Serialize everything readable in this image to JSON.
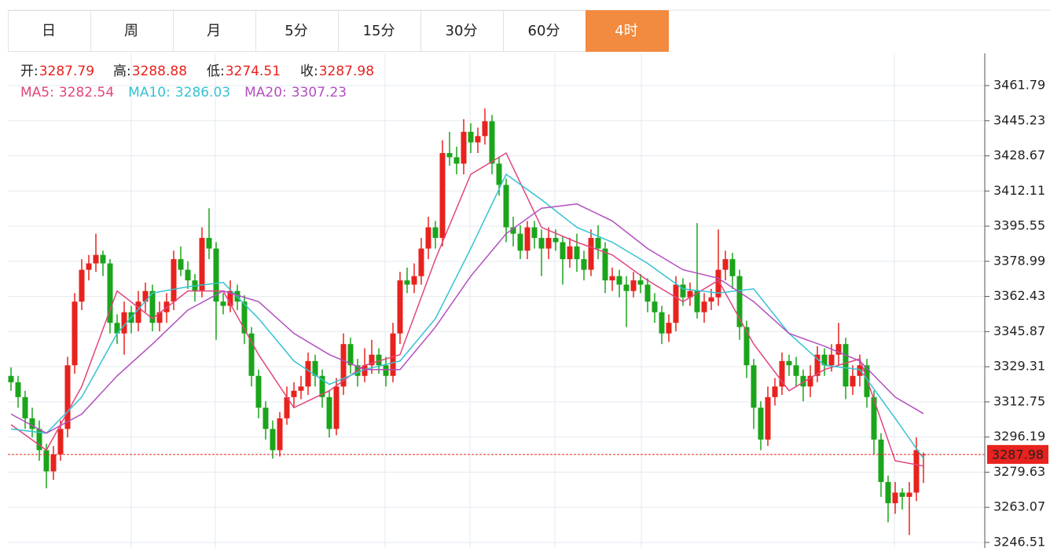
{
  "tabs": [
    "日",
    "周",
    "月",
    "5分",
    "15分",
    "30分",
    "60分",
    "4时"
  ],
  "active_tab": "4时",
  "chart_data": {
    "type": "candlestick",
    "ohlc_labels": [
      "开:",
      "高:",
      "低:",
      "收:"
    ],
    "up_color": "#e8221e",
    "down_color": "#1aa51a",
    "ylim": [
      3243.9,
      3476.96
    ],
    "yticks": [
      3246.51,
      3263.07,
      3279.63,
      3296.19,
      3312.75,
      3329.31,
      3345.87,
      3362.43,
      3378.99,
      3395.55,
      3412.11,
      3428.67,
      3445.23,
      3461.79
    ],
    "grid": true,
    "candles": [
      [
        3325,
        3329,
        3318,
        3322
      ],
      [
        3322,
        3325,
        3310,
        3315
      ],
      [
        3315,
        3318,
        3300,
        3305
      ],
      [
        3305,
        3310,
        3296,
        3300
      ],
      [
        3300,
        3304,
        3285,
        3290
      ],
      [
        3290,
        3293,
        3272,
        3280
      ],
      [
        3280,
        3292,
        3276,
        3288
      ],
      [
        3288,
        3304,
        3285,
        3300
      ],
      [
        3300,
        3334,
        3296,
        3330
      ],
      [
        3330,
        3364,
        3326,
        3360
      ],
      [
        3360,
        3380,
        3356,
        3375
      ],
      [
        3375,
        3382,
        3370,
        3378
      ],
      [
        3378,
        3392,
        3374,
        3382
      ],
      [
        3382,
        3384,
        3372,
        3378
      ],
      [
        3378,
        3380,
        3345,
        3350
      ],
      [
        3350,
        3354,
        3340,
        3345
      ],
      [
        3345,
        3360,
        3335,
        3355
      ],
      [
        3355,
        3358,
        3345,
        3350
      ],
      [
        3350,
        3365,
        3346,
        3360
      ],
      [
        3360,
        3369,
        3355,
        3365
      ],
      [
        3365,
        3368,
        3346,
        3350
      ],
      [
        3350,
        3360,
        3346,
        3355
      ],
      [
        3355,
        3364,
        3350,
        3360
      ],
      [
        3360,
        3384,
        3356,
        3380
      ],
      [
        3380,
        3386,
        3372,
        3375
      ],
      [
        3375,
        3379,
        3366,
        3370
      ],
      [
        3370,
        3373,
        3360,
        3365
      ],
      [
        3365,
        3395,
        3362,
        3390
      ],
      [
        3390,
        3404,
        3380,
        3385
      ],
      [
        3385,
        3388,
        3342,
        3360
      ],
      [
        3360,
        3364,
        3354,
        3358
      ],
      [
        3358,
        3370,
        3355,
        3365
      ],
      [
        3365,
        3368,
        3356,
        3360
      ],
      [
        3360,
        3363,
        3340,
        3345
      ],
      [
        3345,
        3348,
        3320,
        3325
      ],
      [
        3325,
        3328,
        3305,
        3310
      ],
      [
        3310,
        3313,
        3295,
        3300
      ],
      [
        3300,
        3304,
        3286,
        3290
      ],
      [
        3290,
        3308,
        3287,
        3305
      ],
      [
        3305,
        3320,
        3302,
        3315
      ],
      [
        3315,
        3322,
        3310,
        3318
      ],
      [
        3318,
        3325,
        3314,
        3320
      ],
      [
        3320,
        3336,
        3316,
        3332
      ],
      [
        3332,
        3335,
        3320,
        3325
      ],
      [
        3325,
        3328,
        3310,
        3315
      ],
      [
        3315,
        3318,
        3296,
        3300
      ],
      [
        3300,
        3324,
        3297,
        3320
      ],
      [
        3320,
        3345,
        3316,
        3340
      ],
      [
        3340,
        3343,
        3326,
        3330
      ],
      [
        3330,
        3333,
        3320,
        3325
      ],
      [
        3325,
        3338,
        3322,
        3330
      ],
      [
        3330,
        3342,
        3326,
        3335
      ],
      [
        3335,
        3338,
        3326,
        3330
      ],
      [
        3330,
        3334,
        3320,
        3325
      ],
      [
        3325,
        3350,
        3322,
        3345
      ],
      [
        3345,
        3374,
        3340,
        3370
      ],
      [
        3370,
        3376,
        3364,
        3368
      ],
      [
        3368,
        3378,
        3364,
        3372
      ],
      [
        3372,
        3390,
        3368,
        3385
      ],
      [
        3385,
        3400,
        3380,
        3395
      ],
      [
        3395,
        3398,
        3385,
        3390
      ],
      [
        3390,
        3436,
        3386,
        3430
      ],
      [
        3430,
        3440,
        3424,
        3428
      ],
      [
        3428,
        3433,
        3420,
        3425
      ],
      [
        3425,
        3446,
        3420,
        3440
      ],
      [
        3440,
        3444,
        3430,
        3435
      ],
      [
        3435,
        3442,
        3430,
        3438
      ],
      [
        3438,
        3451,
        3434,
        3445
      ],
      [
        3445,
        3448,
        3420,
        3425
      ],
      [
        3425,
        3428,
        3410,
        3415
      ],
      [
        3415,
        3418,
        3388,
        3395
      ],
      [
        3395,
        3400,
        3386,
        3392
      ],
      [
        3392,
        3396,
        3380,
        3384
      ],
      [
        3384,
        3398,
        3380,
        3395
      ],
      [
        3395,
        3398,
        3385,
        3390
      ],
      [
        3390,
        3394,
        3372,
        3385
      ],
      [
        3385,
        3395,
        3380,
        3390
      ],
      [
        3390,
        3394,
        3384,
        3388
      ],
      [
        3388,
        3391,
        3368,
        3380
      ],
      [
        3380,
        3390,
        3376,
        3386
      ],
      [
        3386,
        3392,
        3374,
        3380
      ],
      [
        3380,
        3384,
        3370,
        3375
      ],
      [
        3375,
        3394,
        3372,
        3390
      ],
      [
        3390,
        3396,
        3380,
        3385
      ],
      [
        3385,
        3388,
        3364,
        3370
      ],
      [
        3370,
        3376,
        3365,
        3372
      ],
      [
        3372,
        3375,
        3362,
        3368
      ],
      [
        3368,
        3372,
        3348,
        3365
      ],
      [
        3365,
        3374,
        3362,
        3370
      ],
      [
        3370,
        3373,
        3364,
        3368
      ],
      [
        3368,
        3371,
        3355,
        3360
      ],
      [
        3360,
        3364,
        3350,
        3355
      ],
      [
        3355,
        3358,
        3340,
        3345
      ],
      [
        3345,
        3354,
        3341,
        3350
      ],
      [
        3350,
        3372,
        3346,
        3368
      ],
      [
        3368,
        3371,
        3358,
        3362
      ],
      [
        3362,
        3369,
        3358,
        3365
      ],
      [
        3365,
        3397,
        3352,
        3355
      ],
      [
        3355,
        3364,
        3350,
        3360
      ],
      [
        3360,
        3366,
        3356,
        3362
      ],
      [
        3362,
        3394,
        3358,
        3375
      ],
      [
        3375,
        3384,
        3370,
        3380
      ],
      [
        3380,
        3383,
        3366,
        3372
      ],
      [
        3372,
        3375,
        3342,
        3348
      ],
      [
        3348,
        3351,
        3324,
        3330
      ],
      [
        3330,
        3333,
        3300,
        3310
      ],
      [
        3310,
        3313,
        3290,
        3295
      ],
      [
        3295,
        3320,
        3292,
        3315
      ],
      [
        3315,
        3324,
        3311,
        3320
      ],
      [
        3320,
        3336,
        3316,
        3332
      ],
      [
        3332,
        3335,
        3325,
        3330
      ],
      [
        3330,
        3334,
        3320,
        3325
      ],
      [
        3325,
        3328,
        3313,
        3320
      ],
      [
        3320,
        3330,
        3315,
        3325
      ],
      [
        3325,
        3339,
        3322,
        3335
      ],
      [
        3335,
        3338,
        3325,
        3330
      ],
      [
        3330,
        3340,
        3327,
        3335
      ],
      [
        3335,
        3350,
        3330,
        3340
      ],
      [
        3340,
        3343,
        3314,
        3320
      ],
      [
        3320,
        3330,
        3316,
        3325
      ],
      [
        3325,
        3335,
        3320,
        3330
      ],
      [
        3330,
        3333,
        3310,
        3315
      ],
      [
        3315,
        3318,
        3288,
        3295
      ],
      [
        3295,
        3298,
        3268,
        3275
      ],
      [
        3275,
        3278,
        3256,
        3265
      ],
      [
        3265,
        3275,
        3260,
        3270
      ],
      [
        3270,
        3272,
        3262,
        3268
      ],
      [
        3268,
        3275,
        3250,
        3270
      ],
      [
        3270,
        3296,
        3266,
        3290
      ],
      [
        3287.79,
        3288.88,
        3274.51,
        3287.98
      ]
    ],
    "series": [
      {
        "name": "MA5:",
        "color": "#e2457c",
        "x": [
          0,
          5,
          10,
          15,
          20,
          25,
          30,
          35,
          40,
          45,
          50,
          55,
          60,
          65,
          70,
          75,
          80,
          85,
          90,
          95,
          100,
          105,
          110,
          115,
          120,
          125,
          129
        ],
        "values": [
          3302,
          3290,
          3320,
          3365,
          3352,
          3365,
          3365,
          3335,
          3310,
          3318,
          3330,
          3335,
          3380,
          3420,
          3430,
          3395,
          3388,
          3382,
          3370,
          3360,
          3370,
          3340,
          3318,
          3328,
          3333,
          3285,
          3282.54
        ]
      },
      {
        "name": "MA10:",
        "color": "#35c3d3",
        "x": [
          0,
          5,
          10,
          15,
          20,
          25,
          30,
          35,
          40,
          45,
          50,
          55,
          60,
          65,
          70,
          75,
          80,
          85,
          90,
          95,
          100,
          105,
          110,
          115,
          120,
          125,
          129
        ],
        "values": [
          3300,
          3298,
          3315,
          3345,
          3364,
          3367,
          3369,
          3352,
          3332,
          3321,
          3328,
          3332,
          3352,
          3385,
          3420,
          3408,
          3395,
          3388,
          3378,
          3366,
          3364,
          3366,
          3345,
          3330,
          3328,
          3305,
          3286.03
        ]
      },
      {
        "name": "MA20:",
        "color": "#b24fbf",
        "x": [
          0,
          5,
          10,
          15,
          20,
          25,
          30,
          35,
          40,
          45,
          50,
          55,
          60,
          65,
          70,
          75,
          80,
          85,
          90,
          95,
          100,
          105,
          110,
          115,
          120,
          125,
          129
        ],
        "values": [
          3307,
          3298,
          3307,
          3325,
          3340,
          3356,
          3365,
          3360,
          3345,
          3335,
          3328,
          3328,
          3348,
          3372,
          3392,
          3404,
          3406,
          3398,
          3385,
          3375,
          3371,
          3360,
          3345,
          3339,
          3332,
          3315,
          3307.23
        ]
      }
    ]
  }
}
